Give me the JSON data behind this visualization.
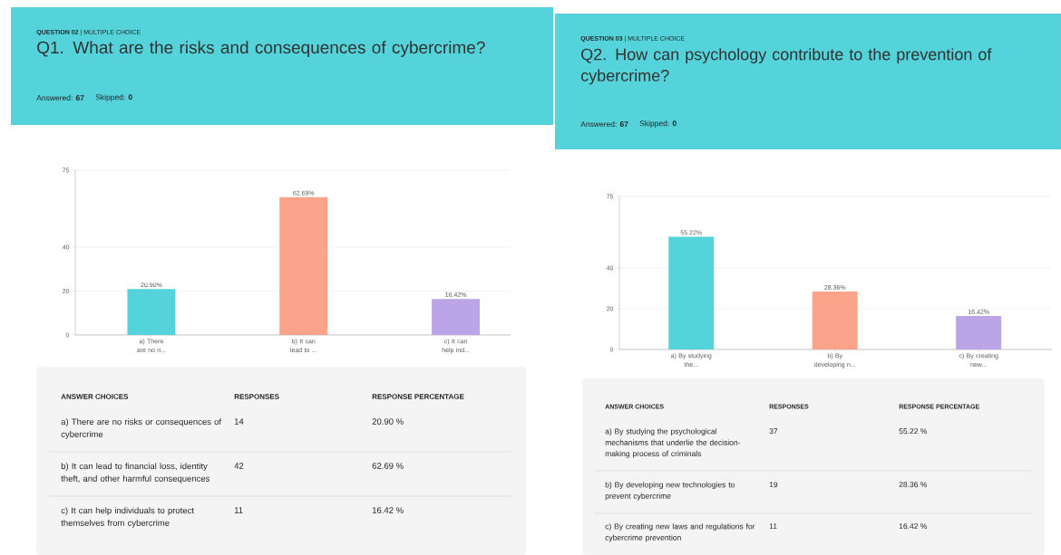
{
  "chart_data": [
    {
      "type": "bar",
      "title": "Q1. What are the risks and consequences of cybercrime?",
      "subtitle": "**QUESTION 02** | MULTIPLE CHOICE",
      "categories": [
        "a) There are no ri...",
        "b) It can lead to ...",
        "c) It can help ind..."
      ],
      "values": [
        20.9,
        62.69,
        16.42
      ],
      "colors": [
        "#54d3da",
        "#fca38b",
        "#bba5e6"
      ],
      "value_labels": [
        "20.90%",
        "62.69%",
        "16.42%"
      ],
      "ylim": [
        0,
        75
      ],
      "yticks": [
        0,
        20,
        40,
        75
      ],
      "grid": "y",
      "annotations": [
        "Answered: **67**",
        "Skipped: **0**",
        "ANSWER CHOICES",
        "RESPONSES",
        "RESPONSE PERCENTAGE",
        "a) There are no risks or consequences of cybercrime",
        "14",
        "20.90 %",
        "b) It can lead to financial loss, identity theft, and other harmful consequences",
        "42",
        "62.69 %",
        "c) It can help individuals to protect themselves from cybercrime",
        "11",
        "16.42 %"
      ]
    },
    {
      "type": "bar",
      "title": "Q2. How can psychology contribute to the prevention of cybercrime?",
      "subtitle": "**QUESTION 03** | MULTIPLE CHOICE",
      "categories": [
        "a) By studying the...",
        "b) By developing n...",
        "c) By creating new..."
      ],
      "values": [
        55.22,
        28.36,
        16.42
      ],
      "colors": [
        "#54d3da",
        "#fca38b",
        "#bba5e6"
      ],
      "value_labels": [
        "55.22%",
        "28.36%",
        "16.42%"
      ],
      "ylim": [
        0,
        75
      ],
      "yticks": [
        0,
        20,
        40,
        75
      ],
      "grid": "y",
      "annotations": [
        "Answered: **67**",
        "Skipped: **0**",
        "ANSWER CHOICES",
        "RESPONSES",
        "RESPONSE PERCENTAGE",
        "a) By studying the psychological mechanisms that underlie the decision-making process of criminals",
        "37",
        "55.22 %",
        "b) By developing new technologies to prevent cybercrime",
        "19",
        "28.36 %",
        "c) By creating new laws and regulations for cybercrime prevention",
        "11",
        "16.42 %"
      ]
    }
  ]
}
